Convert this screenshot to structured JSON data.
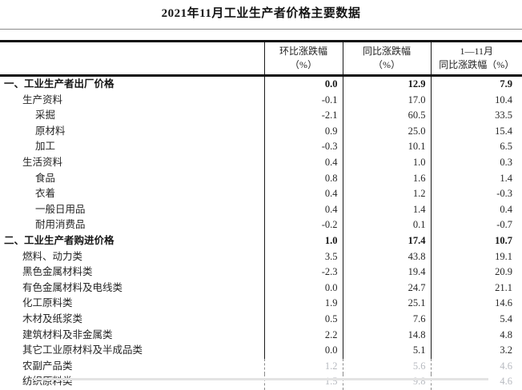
{
  "title": "2021年11月工业生产者价格主要数据",
  "table": {
    "headers": {
      "category": "",
      "mom": {
        "line1": "环比涨跌幅",
        "line2": "（%）"
      },
      "yoy": {
        "line1": "同比涨跌幅",
        "line2": "（%）"
      },
      "ytd": {
        "line1": "1—11月",
        "line2": "同比涨跌幅（%）"
      }
    },
    "rows": [
      {
        "label": "一、工业生产者出厂价格",
        "indent": 0,
        "bold": true,
        "faded": false,
        "mom": "0.0",
        "yoy": "12.9",
        "ytd": "7.9"
      },
      {
        "label": "生产资料",
        "indent": 1,
        "bold": false,
        "faded": false,
        "mom": "-0.1",
        "yoy": "17.0",
        "ytd": "10.4"
      },
      {
        "label": "采掘",
        "indent": 2,
        "bold": false,
        "faded": false,
        "mom": "-2.1",
        "yoy": "60.5",
        "ytd": "33.5"
      },
      {
        "label": "原材料",
        "indent": 2,
        "bold": false,
        "faded": false,
        "mom": "0.9",
        "yoy": "25.0",
        "ytd": "15.4"
      },
      {
        "label": "加工",
        "indent": 2,
        "bold": false,
        "faded": false,
        "mom": "-0.3",
        "yoy": "10.1",
        "ytd": "6.5"
      },
      {
        "label": "生活资料",
        "indent": 1,
        "bold": false,
        "faded": false,
        "mom": "0.4",
        "yoy": "1.0",
        "ytd": "0.3"
      },
      {
        "label": "食品",
        "indent": 2,
        "bold": false,
        "faded": false,
        "mom": "0.8",
        "yoy": "1.6",
        "ytd": "1.4"
      },
      {
        "label": "衣着",
        "indent": 2,
        "bold": false,
        "faded": false,
        "mom": "0.4",
        "yoy": "1.2",
        "ytd": "-0.3"
      },
      {
        "label": "一般日用品",
        "indent": 2,
        "bold": false,
        "faded": false,
        "mom": "0.4",
        "yoy": "1.4",
        "ytd": "0.4"
      },
      {
        "label": "耐用消费品",
        "indent": 2,
        "bold": false,
        "faded": false,
        "mom": "-0.2",
        "yoy": "0.1",
        "ytd": "-0.7"
      },
      {
        "label": "二、工业生产者购进价格",
        "indent": 0,
        "bold": true,
        "faded": false,
        "mom": "1.0",
        "yoy": "17.4",
        "ytd": "10.7"
      },
      {
        "label": "燃料、动力类",
        "indent": 1,
        "bold": false,
        "faded": false,
        "mom": "3.5",
        "yoy": "43.8",
        "ytd": "19.1"
      },
      {
        "label": "黑色金属材料类",
        "indent": 1,
        "bold": false,
        "faded": false,
        "mom": "-2.3",
        "yoy": "19.4",
        "ytd": "20.9"
      },
      {
        "label": "有色金属材料及电线类",
        "indent": 1,
        "bold": false,
        "faded": false,
        "mom": "0.0",
        "yoy": "24.7",
        "ytd": "21.1"
      },
      {
        "label": "化工原料类",
        "indent": 1,
        "bold": false,
        "faded": false,
        "mom": "1.9",
        "yoy": "25.1",
        "ytd": "14.6"
      },
      {
        "label": "木材及纸浆类",
        "indent": 1,
        "bold": false,
        "faded": false,
        "mom": "0.5",
        "yoy": "7.6",
        "ytd": "5.4"
      },
      {
        "label": "建筑材料及非金属类",
        "indent": 1,
        "bold": false,
        "faded": false,
        "mom": "2.2",
        "yoy": "14.8",
        "ytd": "4.8"
      },
      {
        "label": "其它工业原材料及半成品类",
        "indent": 1,
        "bold": false,
        "faded": false,
        "mom": "0.0",
        "yoy": "5.1",
        "ytd": "3.2"
      },
      {
        "label": "农副产品类",
        "indent": 1,
        "bold": false,
        "faded": true,
        "mom": "1.2",
        "yoy": "5.6",
        "ytd": "4.6"
      },
      {
        "label": "纺织原料类",
        "indent": 1,
        "bold": false,
        "faded": true,
        "mom": "1.5",
        "yoy": "9.8",
        "ytd": "4.6"
      }
    ]
  }
}
